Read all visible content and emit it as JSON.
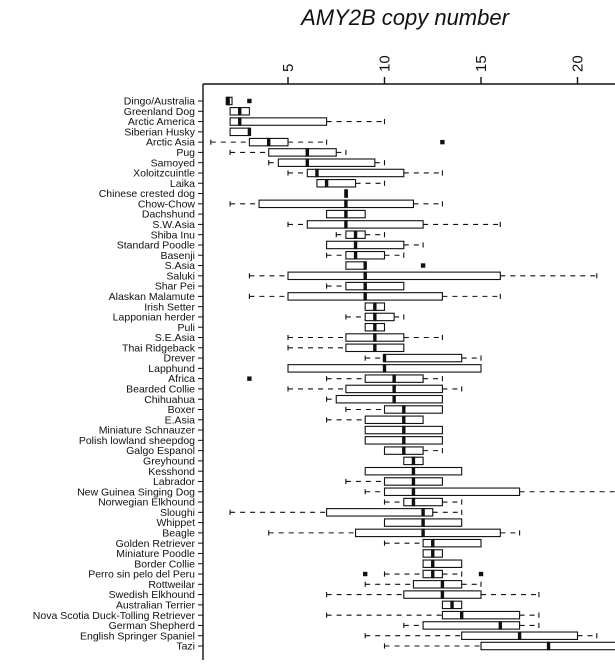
{
  "chart_data": {
    "type": "boxplot",
    "orientation": "horizontal",
    "title": "AMY2B copy number",
    "x_axis_position": "top",
    "xlim": [
      0,
      22
    ],
    "xticks": [
      5,
      10,
      15,
      20
    ],
    "categories": [
      "Dingo/Australia",
      "Greenland Dog",
      "Arctic America",
      "Siberian Husky",
      "Arctic Asia",
      "Pug",
      "Samoyed",
      "Xoloitzcuintle",
      "Laika",
      "Chinese crested dog",
      "Chow-Chow",
      "Dachshund",
      "S.W.Asia",
      "Shiba Inu",
      "Standard Poodle",
      "Basenji",
      "S.Asia",
      "Saluki",
      "Shar Pei",
      "Alaskan Malamute",
      "Irish Setter",
      "Lapponian herder",
      "Puli",
      "S.E.Asia",
      "Thai Ridgeback",
      "Drever",
      "Lapphund",
      "Africa",
      "Bearded Collie",
      "Chihuahua",
      "Boxer",
      "E.Asia",
      "Miniature Schnauzer",
      "Polish lowland sheepdog",
      "Galgo Espanol",
      "Greyhound",
      "Kesshond",
      "Labrador",
      "New Guinea Singing Dog",
      "Norwegian Elkhound",
      "Sloughi",
      "Whippet",
      "Beagle",
      "Golden Retriever",
      "Miniature Poodle",
      "Border Collie",
      "Perro sin pelo del Peru",
      "Rottweilar",
      "Swedish Elkhound",
      "Australian Terrier",
      "Nova Scotia Duck-Tolling Retriever",
      "German Shepherd",
      "English Springer Spaniel",
      "Tazi"
    ],
    "boxes": [
      {
        "min": 1.8,
        "q1": 1.8,
        "median": 1.9,
        "q3": 2.1,
        "max": 2.1,
        "outliers": [
          3.0
        ]
      },
      {
        "min": 2.0,
        "q1": 2.0,
        "median": 2.5,
        "q3": 3.0,
        "max": 3.0,
        "outliers": []
      },
      {
        "min": 2.0,
        "q1": 2.0,
        "median": 2.5,
        "q3": 7.0,
        "max": 10.0,
        "outliers": []
      },
      {
        "min": 2.0,
        "q1": 2.0,
        "median": 3.0,
        "q3": 3.0,
        "max": 3.0,
        "outliers": []
      },
      {
        "min": 1.0,
        "q1": 3.0,
        "median": 4.0,
        "q3": 5.0,
        "max": 7.0,
        "outliers": [
          13.0
        ]
      },
      {
        "min": 2.0,
        "q1": 4.0,
        "median": 6.0,
        "q3": 7.5,
        "max": 8.0,
        "outliers": []
      },
      {
        "min": 4.0,
        "q1": 4.5,
        "median": 6.0,
        "q3": 9.5,
        "max": 10.0,
        "outliers": []
      },
      {
        "min": 5.0,
        "q1": 6.0,
        "median": 6.5,
        "q3": 11.0,
        "max": 13.0,
        "outliers": []
      },
      {
        "min": 6.5,
        "q1": 6.5,
        "median": 7.0,
        "q3": 8.5,
        "max": 10.0,
        "outliers": []
      },
      {
        "min": 8.0,
        "q1": 8.0,
        "median": 8.0,
        "q3": 8.0,
        "max": 8.0,
        "outliers": []
      },
      {
        "min": 2.0,
        "q1": 3.5,
        "median": 8.0,
        "q3": 11.5,
        "max": 13.0,
        "outliers": []
      },
      {
        "min": 7.0,
        "q1": 7.0,
        "median": 8.0,
        "q3": 9.0,
        "max": 9.0,
        "outliers": []
      },
      {
        "min": 5.0,
        "q1": 6.0,
        "median": 8.0,
        "q3": 12.0,
        "max": 16.0,
        "outliers": []
      },
      {
        "min": 7.5,
        "q1": 8.0,
        "median": 8.5,
        "q3": 9.0,
        "max": 10.0,
        "outliers": []
      },
      {
        "min": 7.0,
        "q1": 7.0,
        "median": 8.5,
        "q3": 11.0,
        "max": 12.0,
        "outliers": []
      },
      {
        "min": 7.0,
        "q1": 8.0,
        "median": 8.5,
        "q3": 10.0,
        "max": 11.0,
        "outliers": []
      },
      {
        "min": 8.0,
        "q1": 8.0,
        "median": 9.0,
        "q3": 9.0,
        "max": 9.0,
        "outliers": [
          12.0
        ]
      },
      {
        "min": 3.0,
        "q1": 5.0,
        "median": 9.0,
        "q3": 16.0,
        "max": 21.0,
        "outliers": []
      },
      {
        "min": 7.0,
        "q1": 8.0,
        "median": 9.0,
        "q3": 11.0,
        "max": 11.0,
        "outliers": []
      },
      {
        "min": 3.0,
        "q1": 5.0,
        "median": 9.0,
        "q3": 13.0,
        "max": 16.0,
        "outliers": []
      },
      {
        "min": 9.0,
        "q1": 9.0,
        "median": 9.5,
        "q3": 10.0,
        "max": 10.0,
        "outliers": []
      },
      {
        "min": 8.0,
        "q1": 9.0,
        "median": 9.5,
        "q3": 10.5,
        "max": 11.0,
        "outliers": []
      },
      {
        "min": 9.0,
        "q1": 9.0,
        "median": 9.5,
        "q3": 10.0,
        "max": 10.0,
        "outliers": []
      },
      {
        "min": 5.0,
        "q1": 8.0,
        "median": 9.5,
        "q3": 11.0,
        "max": 13.0,
        "outliers": []
      },
      {
        "min": 5.0,
        "q1": 8.0,
        "median": 9.5,
        "q3": 11.0,
        "max": 11.0,
        "outliers": []
      },
      {
        "min": 9.0,
        "q1": 10.0,
        "median": 10.0,
        "q3": 14.0,
        "max": 15.0,
        "outliers": []
      },
      {
        "min": 5.0,
        "q1": 5.0,
        "median": 10.0,
        "q3": 15.0,
        "max": 15.0,
        "outliers": []
      },
      {
        "min": 7.0,
        "q1": 9.0,
        "median": 10.5,
        "q3": 12.0,
        "max": 13.0,
        "outliers": [
          3.0
        ]
      },
      {
        "min": 5.0,
        "q1": 8.0,
        "median": 10.5,
        "q3": 13.0,
        "max": 14.0,
        "outliers": []
      },
      {
        "min": 7.0,
        "q1": 7.5,
        "median": 10.5,
        "q3": 13.0,
        "max": 13.0,
        "outliers": []
      },
      {
        "min": 8.0,
        "q1": 10.0,
        "median": 11.0,
        "q3": 13.0,
        "max": 13.0,
        "outliers": []
      },
      {
        "min": 7.0,
        "q1": 9.0,
        "median": 11.0,
        "q3": 12.0,
        "max": 12.0,
        "outliers": []
      },
      {
        "min": 9.0,
        "q1": 9.0,
        "median": 11.0,
        "q3": 13.0,
        "max": 13.0,
        "outliers": []
      },
      {
        "min": 9.0,
        "q1": 9.0,
        "median": 11.0,
        "q3": 13.0,
        "max": 13.0,
        "outliers": []
      },
      {
        "min": 10.0,
        "q1": 10.0,
        "median": 11.0,
        "q3": 12.0,
        "max": 13.0,
        "outliers": []
      },
      {
        "min": 11.0,
        "q1": 11.0,
        "median": 11.5,
        "q3": 12.0,
        "max": 12.0,
        "outliers": []
      },
      {
        "min": 9.0,
        "q1": 9.0,
        "median": 11.5,
        "q3": 14.0,
        "max": 14.0,
        "outliers": []
      },
      {
        "min": 8.0,
        "q1": 10.0,
        "median": 11.5,
        "q3": 13.0,
        "max": 13.0,
        "outliers": []
      },
      {
        "min": 9.0,
        "q1": 10.0,
        "median": 11.5,
        "q3": 17.0,
        "max": 22.0,
        "outliers": []
      },
      {
        "min": 10.0,
        "q1": 11.0,
        "median": 11.5,
        "q3": 13.0,
        "max": 14.0,
        "outliers": []
      },
      {
        "min": 2.0,
        "q1": 7.0,
        "median": 12.0,
        "q3": 12.5,
        "max": 14.0,
        "outliers": []
      },
      {
        "min": 10.0,
        "q1": 10.0,
        "median": 12.0,
        "q3": 14.0,
        "max": 14.0,
        "outliers": []
      },
      {
        "min": 4.0,
        "q1": 8.5,
        "median": 12.0,
        "q3": 16.0,
        "max": 17.0,
        "outliers": []
      },
      {
        "min": 10.0,
        "q1": 12.0,
        "median": 12.5,
        "q3": 15.0,
        "max": 15.0,
        "outliers": []
      },
      {
        "min": 12.0,
        "q1": 12.0,
        "median": 12.5,
        "q3": 13.0,
        "max": 13.0,
        "outliers": []
      },
      {
        "min": 12.0,
        "q1": 12.0,
        "median": 12.5,
        "q3": 14.0,
        "max": 14.0,
        "outliers": []
      },
      {
        "min": 10.0,
        "q1": 12.0,
        "median": 12.5,
        "q3": 13.0,
        "max": 14.0,
        "outliers": [
          9.0,
          15.0
        ]
      },
      {
        "min": 9.0,
        "q1": 11.5,
        "median": 13.0,
        "q3": 14.0,
        "max": 15.0,
        "outliers": []
      },
      {
        "min": 7.0,
        "q1": 11.0,
        "median": 13.0,
        "q3": 15.0,
        "max": 18.0,
        "outliers": []
      },
      {
        "min": 13.0,
        "q1": 13.0,
        "median": 13.5,
        "q3": 14.0,
        "max": 14.0,
        "outliers": []
      },
      {
        "min": 7.0,
        "q1": 13.0,
        "median": 14.0,
        "q3": 17.0,
        "max": 18.0,
        "outliers": []
      },
      {
        "min": 11.0,
        "q1": 12.0,
        "median": 16.0,
        "q3": 17.0,
        "max": 18.0,
        "outliers": []
      },
      {
        "min": 9.0,
        "q1": 14.0,
        "median": 17.0,
        "q3": 20.0,
        "max": 21.0,
        "outliers": []
      },
      {
        "min": 10.0,
        "q1": 15.0,
        "median": 18.5,
        "q3": 22.0,
        "max": 22.0,
        "outliers": []
      }
    ],
    "grid": false,
    "legend": "none"
  }
}
